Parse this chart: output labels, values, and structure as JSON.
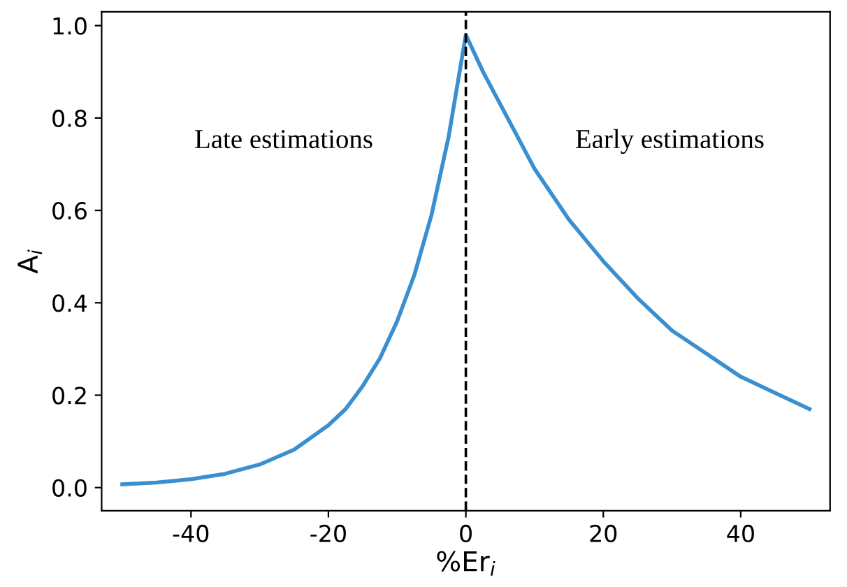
{
  "chart_data": {
    "type": "line",
    "xlabel": "%Er$_{i}$",
    "ylabel": "A$_{i}$",
    "x": [
      -50,
      -45,
      -40,
      -35,
      -30,
      -25,
      -20,
      -17.5,
      -15,
      -12.5,
      -10,
      -7.5,
      -5,
      -2.5,
      0,
      2.5,
      5,
      7.5,
      10,
      15,
      20,
      25,
      30,
      35,
      40,
      45,
      50
    ],
    "series": [
      {
        "color": "#3a8fd0",
        "values": [
          0.007,
          0.011,
          0.018,
          0.03,
          0.05,
          0.082,
          0.135,
          0.17,
          0.22,
          0.28,
          0.36,
          0.46,
          0.59,
          0.76,
          0.98,
          0.9,
          0.83,
          0.76,
          0.69,
          0.58,
          0.49,
          0.41,
          0.34,
          0.29,
          0.24,
          0.205,
          0.17
        ]
      }
    ],
    "xlim": [
      -53,
      53
    ],
    "ylim": [
      -0.05,
      1.03
    ],
    "xticks": [
      -40,
      -20,
      0,
      20,
      40
    ],
    "yticks": [
      {
        "value": 0,
        "label": "0.0"
      },
      {
        "value": 0.2,
        "label": "0.2"
      },
      {
        "value": 0.4,
        "label": "0.4"
      },
      {
        "value": 0.6,
        "label": "0.6"
      },
      {
        "value": 0.8,
        "label": "0.8"
      },
      {
        "value": 1,
        "label": "1.0"
      }
    ],
    "ref_lines": [
      {
        "axis": "x",
        "value": 0,
        "color": "#000000",
        "line_style": "dashed"
      }
    ],
    "annotations": [
      "Late estimations",
      "Early estimations"
    ],
    "grid": false,
    "legend": false,
    "marker": "none",
    "line_style": "solid"
  }
}
